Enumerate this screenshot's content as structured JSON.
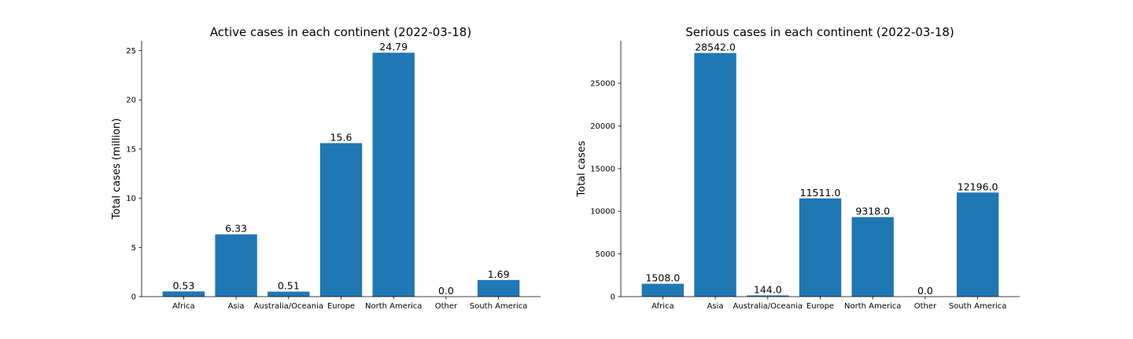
{
  "chart_data": [
    {
      "type": "bar",
      "title": "Active cases in each continent (2022-03-18)",
      "xlabel": "",
      "ylabel": "Total cases (million)",
      "categories": [
        "Africa",
        "Asia",
        "Australia/Oceania",
        "Europe",
        "North America",
        "Other",
        "South America"
      ],
      "values": [
        0.53,
        6.33,
        0.51,
        15.6,
        24.79,
        0.0,
        1.69
      ],
      "value_labels": [
        "0.53",
        "6.33",
        "0.51",
        "15.6",
        "24.79",
        "0.0",
        "1.69"
      ],
      "ylim": [
        0,
        26
      ],
      "yticks": [
        0,
        5,
        10,
        15,
        20,
        25
      ],
      "ytick_labels": [
        "0",
        "5",
        "10",
        "15",
        "20",
        "25"
      ],
      "grid": false,
      "bar_color": "#1f77b4"
    },
    {
      "type": "bar",
      "title": "Serious cases in each continent (2022-03-18)",
      "xlabel": "",
      "ylabel": "Total cases",
      "categories": [
        "Africa",
        "Asia",
        "Australia/Oceania",
        "Europe",
        "North America",
        "Other",
        "South America"
      ],
      "values": [
        1508.0,
        28542.0,
        144.0,
        11511.0,
        9318.0,
        0.0,
        12196.0
      ],
      "value_labels": [
        "1508.0",
        "28542.0",
        "144.0",
        "11511.0",
        "9318.0",
        "0.0",
        "12196.0"
      ],
      "ylim": [
        0,
        29969
      ],
      "yticks": [
        0,
        5000,
        10000,
        15000,
        20000,
        25000
      ],
      "ytick_labels": [
        "0",
        "5000",
        "10000",
        "15000",
        "20000",
        "25000"
      ],
      "grid": false,
      "bar_color": "#1f77b4"
    }
  ]
}
